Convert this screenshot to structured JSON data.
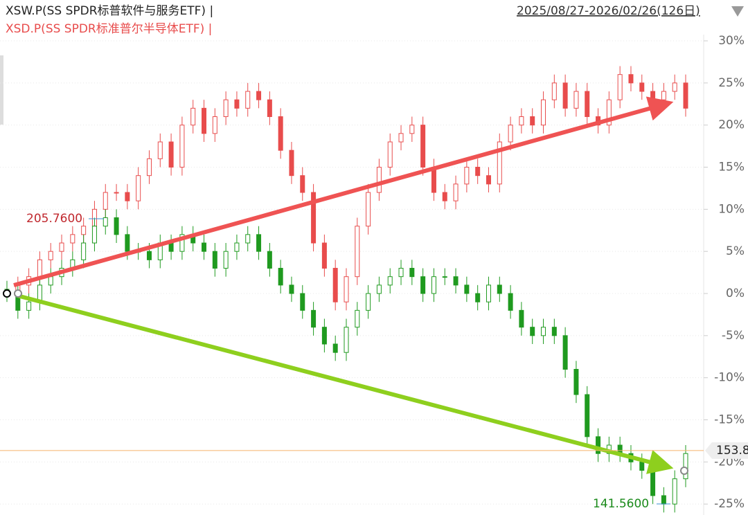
{
  "chart_data": {
    "type": "candlestick",
    "title": "XSW.P(SS SPDR标普软件与服务ETF) |",
    "subtitle": "XSD.P(SS SPDR标准普尔半导体ETF) |",
    "date_range": "2025/08/27-2026/02/26(126日)",
    "ylim": [
      -26.3,
      34.85
    ],
    "yticks": [
      {
        "value": 30,
        "label": "30%"
      },
      {
        "value": 25,
        "label": "25%"
      },
      {
        "value": 20,
        "label": "20%"
      },
      {
        "value": 15,
        "label": "15%"
      },
      {
        "value": 10,
        "label": "10%"
      },
      {
        "value": 5,
        "label": "5%"
      },
      {
        "value": 0,
        "label": "0%"
      },
      {
        "value": -5,
        "label": "-5%"
      },
      {
        "value": -10,
        "label": "-10%"
      },
      {
        "value": -15,
        "label": "-15%"
      },
      {
        "value": -20,
        "label": "-20%"
      },
      {
        "value": -25,
        "label": "-25%"
      }
    ],
    "grid": true,
    "annotations": [
      "205.7600",
      "141.5600"
    ],
    "last_price": 153.8,
    "last_price_level": -18.65,
    "series": [
      {
        "name": "XSD.P",
        "color": "#e84c4c",
        "open": [
          0.5,
          0,
          1,
          2,
          4,
          5,
          6,
          7,
          8,
          10,
          12,
          12,
          11,
          14,
          16,
          18,
          15,
          20,
          22,
          19,
          21,
          23,
          22,
          24,
          23,
          21,
          17,
          14,
          12,
          6,
          3,
          -1,
          2,
          8,
          12,
          15,
          18,
          19,
          20,
          15,
          12,
          11,
          13,
          15,
          14,
          13,
          18,
          20,
          21,
          20,
          23,
          25,
          22,
          24,
          21,
          20,
          23,
          26,
          25,
          24,
          23,
          24,
          25
        ],
        "high": [
          1.5,
          2,
          3,
          5,
          6,
          7,
          8,
          9,
          11,
          13,
          13,
          13,
          15,
          17,
          19,
          19,
          21,
          23,
          23,
          22,
          24,
          24,
          25,
          25,
          24,
          22,
          18,
          15,
          13,
          7,
          4,
          3,
          9,
          13,
          16,
          19,
          20,
          21,
          21,
          16,
          13,
          14,
          16,
          16,
          15,
          19,
          21,
          22,
          22,
          24,
          26,
          26,
          25,
          25,
          22,
          24,
          27,
          27,
          26,
          25,
          25,
          26,
          26
        ],
        "low": [
          -1,
          -1,
          0,
          1,
          3,
          4,
          5,
          6,
          7,
          9,
          11,
          10,
          10,
          13,
          15,
          14,
          14,
          19,
          18,
          18,
          20,
          21,
          21,
          22,
          20,
          16,
          13,
          11,
          5,
          2,
          -2,
          -2,
          1,
          7,
          11,
          14,
          17,
          18,
          14,
          11,
          10,
          10,
          12,
          13,
          12,
          12,
          17,
          19,
          19,
          19,
          22,
          21,
          21,
          20,
          19,
          19,
          22,
          24,
          23,
          22,
          22,
          23,
          21
        ],
        "close": [
          0,
          1,
          2,
          4,
          5,
          6,
          7,
          8,
          10,
          12,
          12,
          11,
          14,
          16,
          18,
          15,
          20,
          22,
          19,
          21,
          23,
          22,
          24,
          23,
          21,
          17,
          14,
          12,
          6,
          3,
          -1,
          2,
          8,
          12,
          15,
          18,
          19,
          20,
          15,
          12,
          11,
          13,
          15,
          14,
          13,
          18,
          20,
          21,
          20,
          23,
          25,
          22,
          24,
          21,
          20,
          23,
          26,
          25,
          24,
          23,
          24,
          25,
          22
        ]
      },
      {
        "name": "XSW.P",
        "color": "#1f9a1f",
        "open": [
          0.5,
          0,
          -2,
          -1,
          1,
          2,
          3,
          4,
          6,
          8,
          9,
          7,
          5,
          5,
          4,
          6,
          5,
          7,
          6,
          5,
          3,
          5,
          6,
          7,
          5,
          3,
          1,
          0,
          -2,
          -4,
          -6,
          -7,
          -4,
          -2,
          0,
          1,
          2,
          3,
          2,
          0,
          2,
          2,
          1,
          0,
          -1,
          1,
          0,
          -2,
          -4,
          -5,
          -4,
          -5,
          -9,
          -12,
          -17,
          -19,
          -18,
          -19,
          -20,
          -21,
          -24,
          -25,
          -22
        ],
        "high": [
          1.5,
          1,
          0,
          2,
          3,
          4,
          5,
          7,
          9,
          10,
          10,
          8,
          6,
          6,
          7,
          7,
          8,
          8,
          7,
          6,
          6,
          7,
          8,
          8,
          6,
          4,
          2,
          1,
          -1,
          -3,
          -5,
          -3,
          -1,
          1,
          2,
          3,
          4,
          4,
          3,
          3,
          3,
          3,
          2,
          1,
          2,
          2,
          1,
          -1,
          -3,
          -3,
          -3,
          -4,
          -8,
          -11,
          -16,
          -17,
          -17,
          -18,
          -19,
          -20,
          -23,
          -21,
          -18
        ],
        "low": [
          -1,
          -3,
          -3,
          -2,
          0,
          1,
          2,
          3,
          5,
          7,
          6,
          4,
          4,
          3,
          3,
          4,
          4,
          5,
          4,
          2,
          2,
          4,
          5,
          4,
          2,
          0,
          -1,
          -3,
          -5,
          -7,
          -8,
          -8,
          -5,
          -3,
          -1,
          0,
          1,
          1,
          -1,
          -1,
          1,
          0,
          -1,
          -2,
          -2,
          -1,
          -3,
          -5,
          -6,
          -6,
          -6,
          -10,
          -13,
          -18,
          -20,
          -20,
          -20,
          -21,
          -22,
          -25,
          -26,
          -26,
          -23
        ],
        "close": [
          0,
          -2,
          -1,
          1,
          2,
          3,
          4,
          6,
          8,
          9,
          7,
          5,
          5,
          4,
          6,
          5,
          7,
          6,
          5,
          3,
          5,
          6,
          7,
          5,
          3,
          1,
          0,
          -2,
          -4,
          -6,
          -7,
          -4,
          -2,
          0,
          1,
          2,
          3,
          2,
          0,
          2,
          2,
          1,
          0,
          -1,
          1,
          0,
          -2,
          -4,
          -5,
          -4,
          -5,
          -9,
          -12,
          -17,
          -19,
          -18,
          -19,
          -20,
          -21,
          -24,
          -25,
          -22,
          -19
        ]
      }
    ]
  }
}
